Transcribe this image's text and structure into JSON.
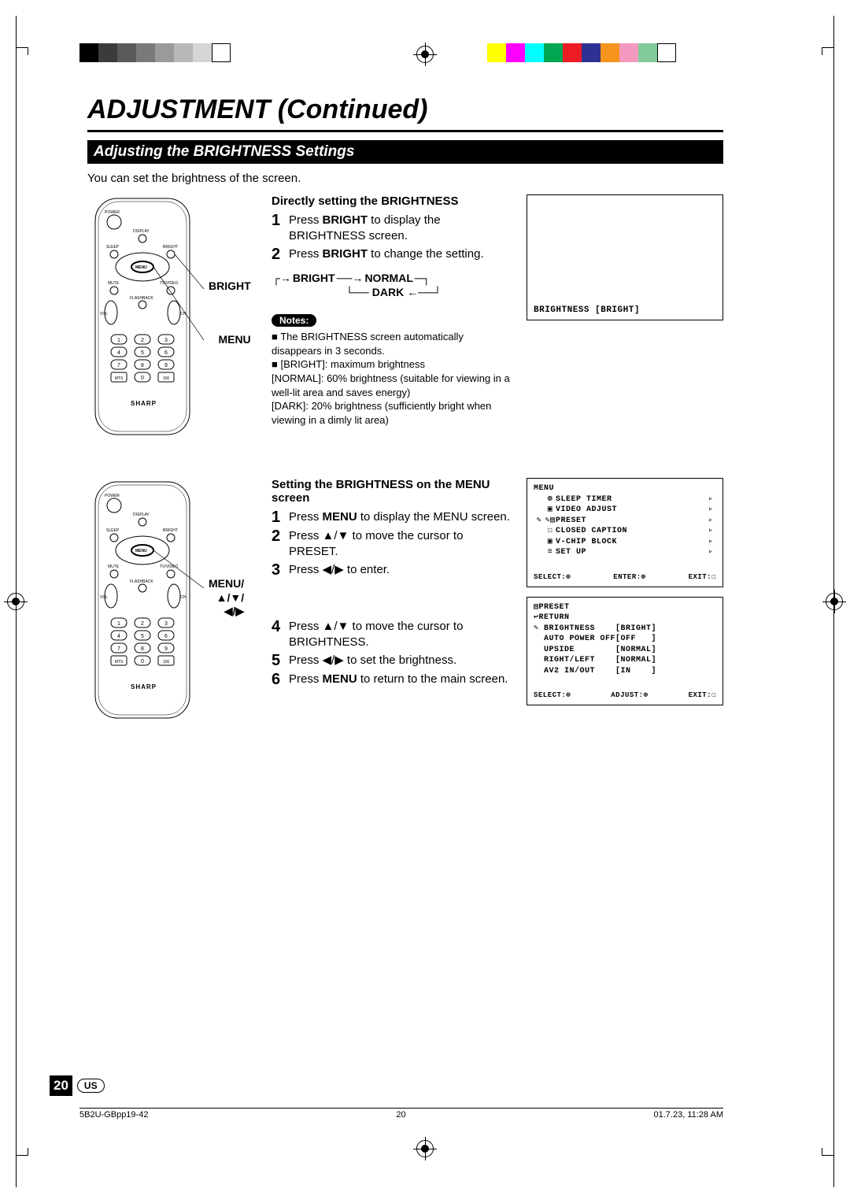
{
  "colorbar_left": [
    "#000000",
    "#3b3b3b",
    "#5a5a5a",
    "#7a7a7a",
    "#9a9a9a",
    "#b8b8b8",
    "#d6d6d6",
    "#ffffff"
  ],
  "colorbar_right": [
    "#ffff00",
    "#ff00ff",
    "#00ffff",
    "#00a651",
    "#ed1c24",
    "#2e3192",
    "#f7941d",
    "#f49ac1",
    "#82ca9c",
    "#ffffff"
  ],
  "title": "ADJUSTMENT (Continued)",
  "section_title": "Adjusting the BRIGHTNESS Settings",
  "intro": "You can set the brightness of the screen.",
  "remote_labels": {
    "bright": "BRIGHT",
    "menu": "MENU",
    "menu_arrows": "MENU/\n▲/▼/\n◀/▶"
  },
  "sec1": {
    "head": "Directly setting the BRIGHTNESS",
    "steps": [
      {
        "n": "1",
        "t": "Press <b>BRIGHT</b> to display the BRIGHTNESS screen."
      },
      {
        "n": "2",
        "t": "Press <b>BRIGHT</b> to change the setting."
      }
    ],
    "cycle": {
      "a": "BRIGHT",
      "b": "NORMAL",
      "c": "DARK"
    },
    "notes_label": "Notes:",
    "notes": [
      "The BRIGHTNESS screen automatically disappears in 3 seconds.",
      "[BRIGHT]: maximum brightness\n[NORMAL]: 60% brightness (suitable for viewing in a well-lit area and saves energy)\n[DARK]: 20% brightness (sufficiently bright when viewing in a dimly lit area)"
    ],
    "screen_text": "BRIGHTNESS [BRIGHT]"
  },
  "sec2": {
    "head": "Setting the BRIGHTNESS on the MENU screen",
    "steps_a": [
      {
        "n": "1",
        "t": "Press <b>MENU</b> to display the MENU screen."
      },
      {
        "n": "2",
        "t": "Press ▲/▼ to move the cursor to PRESET."
      },
      {
        "n": "3",
        "t": "Press ◀/▶ to enter."
      }
    ],
    "steps_b": [
      {
        "n": "4",
        "t": "Press ▲/▼ to move the cursor to BRIGHTNESS."
      },
      {
        "n": "5",
        "t": "Press ◀/▶ to set the brightness."
      },
      {
        "n": "6",
        "t": "Press <b>MENU</b> to return to the main screen."
      }
    ],
    "osd1": {
      "title": "MENU",
      "items": [
        {
          "i": "⊕",
          "l": "SLEEP TIMER",
          "a": "▹"
        },
        {
          "i": "▣",
          "l": "VIDEO ADJUST",
          "a": "▹"
        },
        {
          "i": "✎▤",
          "l": "PRESET",
          "a": "▹",
          "hl": true
        },
        {
          "i": "☐",
          "l": "CLOSED CAPTION",
          "a": "▹"
        },
        {
          "i": "▣",
          "l": "V-CHIP BLOCK",
          "a": "▹"
        },
        {
          "i": "≡",
          "l": "SET UP",
          "a": "▹"
        }
      ],
      "footer": [
        "SELECT:⊕",
        "ENTER:⊕",
        "EXIT:☐"
      ]
    },
    "osd2": {
      "lines": [
        "▤PRESET",
        "↩RETURN",
        "✎ BRIGHTNESS    [BRIGHT]",
        "  AUTO POWER OFF[OFF   ]",
        "  UPSIDE        [NORMAL]",
        "  RIGHT/LEFT    [NORMAL]",
        "  AV2 IN/OUT    [IN    ]"
      ],
      "footer": [
        "SELECT:⊕",
        "ADJUST:⊕",
        "EXIT:☐"
      ]
    }
  },
  "footer": {
    "page": "20",
    "region": "US",
    "docid": "5B2U-GBpp19-42",
    "pnum": "20",
    "date": "01.7.23, 11:28 AM"
  }
}
